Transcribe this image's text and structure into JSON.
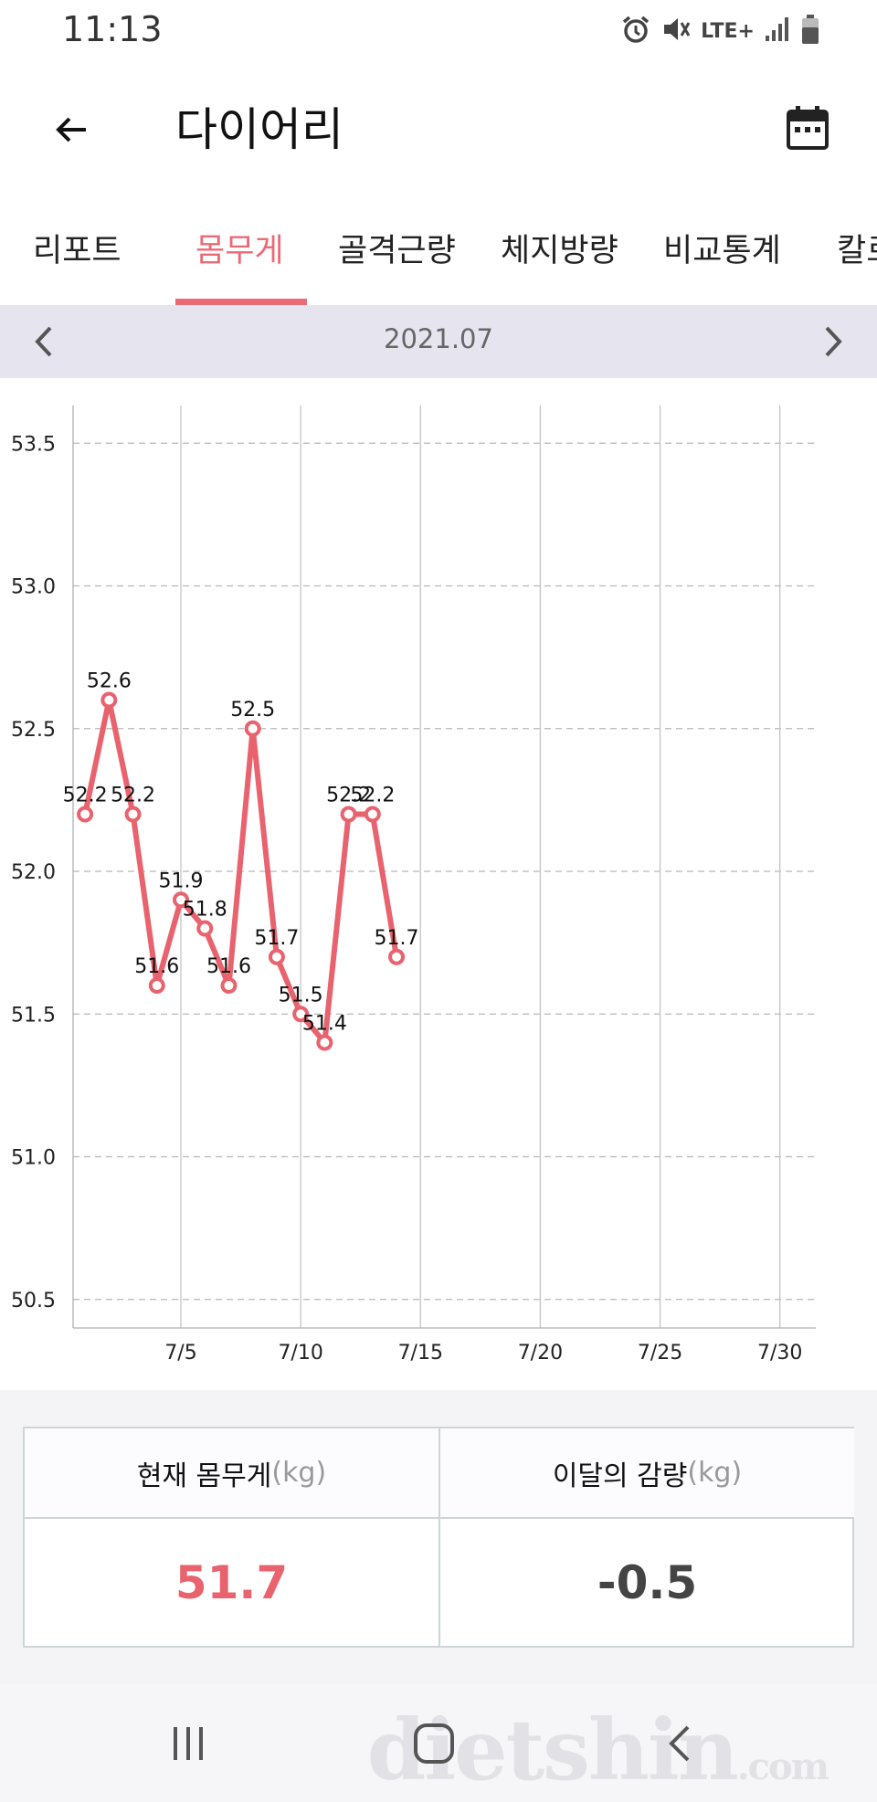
{
  "status_bar": {
    "time": "11:13",
    "network": "LTE+",
    "icons": [
      "alarm-icon",
      "mute-icon",
      "lte-icon",
      "signal-icon",
      "battery-icon"
    ]
  },
  "app_bar": {
    "title": "다이어리",
    "back_icon": "arrow-left-icon",
    "calendar_icon": "calendar-icon"
  },
  "tabs": [
    {
      "label": "리포트",
      "active": false
    },
    {
      "label": "몸무게",
      "active": true
    },
    {
      "label": "골격근량",
      "active": false
    },
    {
      "label": "체지방량",
      "active": false
    },
    {
      "label": "비교통계",
      "active": false
    },
    {
      "label": "칼로",
      "active": false
    }
  ],
  "month_nav": {
    "label": "2021.07",
    "prev_icon": "chevron-left-icon",
    "next_icon": "chevron-right-icon"
  },
  "colors": {
    "accent": "#ec6a75",
    "line": "#e8636e",
    "month_bar_bg": "#e6e4ee"
  },
  "chart_data": {
    "type": "line",
    "title": "",
    "xlabel": "",
    "ylabel": "",
    "x_ticks": [
      "7/5",
      "7/10",
      "7/15",
      "7/20",
      "7/25",
      "7/30"
    ],
    "x_tick_values": [
      5,
      10,
      15,
      20,
      25,
      30
    ],
    "xlim": [
      0.5,
      31.5
    ],
    "y_ticks": [
      "53.5",
      "53.0",
      "52.5",
      "52.0",
      "51.5",
      "51.0",
      "50.5"
    ],
    "y_tick_values": [
      53.5,
      53.0,
      52.5,
      52.0,
      51.5,
      51.0,
      50.5
    ],
    "ylim": [
      50.4,
      53.6
    ],
    "grid": true,
    "series": [
      {
        "x": [
          1,
          2,
          3,
          4,
          5,
          6,
          7,
          8,
          9,
          10,
          11,
          12,
          13,
          14
        ],
        "values": [
          52.2,
          52.6,
          52.2,
          51.6,
          51.9,
          51.8,
          51.6,
          52.5,
          51.7,
          51.5,
          51.4,
          52.2,
          52.2,
          51.7
        ],
        "labels": [
          "52.2",
          "52.6",
          "52.2",
          "51.6",
          "51.9",
          "51.8",
          "51.6",
          "52.5",
          "51.7",
          "51.5",
          "51.4",
          "52.2",
          "52.2",
          "51.7"
        ]
      }
    ]
  },
  "summary": {
    "current_weight_label": "현재 몸무게",
    "current_weight_unit": "(kg)",
    "current_weight_value": "51.7",
    "monthly_change_label": "이달의 감량",
    "monthly_change_unit": "(kg)",
    "monthly_change_value": "-0.5"
  },
  "nav_bar": {
    "recents_icon": "recents-icon",
    "home_icon": "home-icon",
    "back_icon": "back-icon",
    "watermark": "dietshin",
    "watermark_suffix": ".com"
  }
}
